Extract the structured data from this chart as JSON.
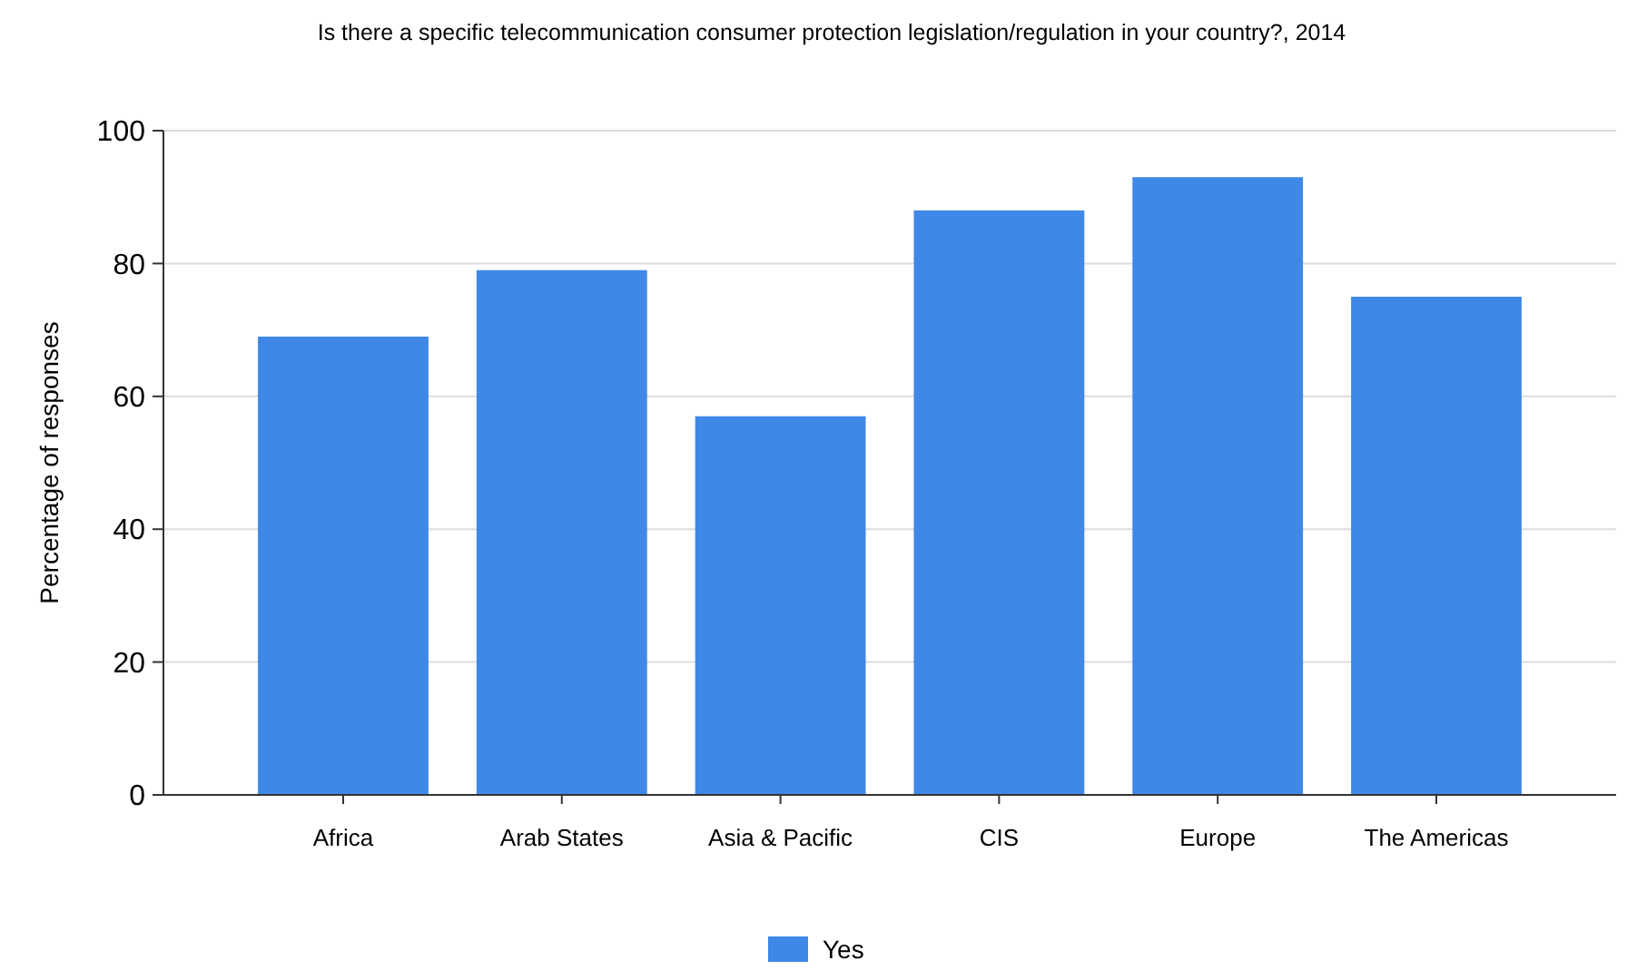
{
  "chart_data": {
    "type": "bar",
    "title": "Is there a specific telecommunication consumer protection legislation/regulation in your country?, 2014",
    "ylabel": "Percentage of responses",
    "categories": [
      "Africa",
      "Arab States",
      "Asia & Pacific",
      "CIS",
      "Europe",
      "The Americas"
    ],
    "series": [
      {
        "name": "Yes",
        "color": "#3f88e8",
        "values": [
          69,
          79,
          57,
          88,
          93,
          75
        ]
      }
    ],
    "ylim": [
      0,
      100
    ],
    "yticks": [
      0,
      20,
      40,
      60,
      80,
      100
    ],
    "grid": "y",
    "legend": "bottom"
  }
}
